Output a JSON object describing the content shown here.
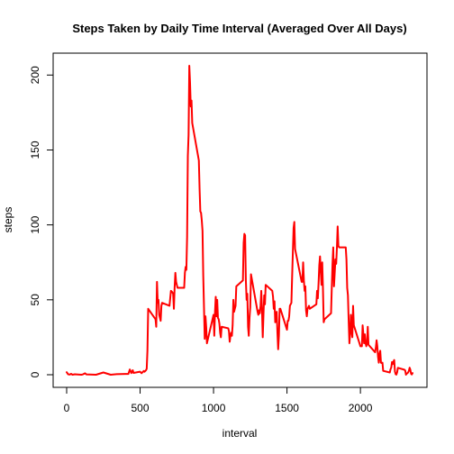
{
  "chart_data": {
    "type": "line",
    "title": "Steps Taken by Daily Time Interval (Averaged Over All Days)",
    "xlabel": "interval",
    "ylabel": "steps",
    "xlim": [
      0,
      2355
    ],
    "ylim": [
      0,
      206.2
    ],
    "x_ticks": [
      0,
      500,
      1000,
      1500,
      2000
    ],
    "y_ticks": [
      0,
      50,
      100,
      150,
      200
    ],
    "x_tick_labels": [
      "0",
      "500",
      "1000",
      "1500",
      "2000"
    ],
    "y_tick_labels": [
      "0",
      "50",
      "100",
      "150",
      "200"
    ],
    "grid": false,
    "legend": "none",
    "series": [
      {
        "color": "#ff0000",
        "points": [
          [
            0,
            1.7
          ],
          [
            10,
            0.3
          ],
          [
            20,
            0.1
          ],
          [
            30,
            0.6
          ],
          [
            40,
            0.0
          ],
          [
            55,
            0.3
          ],
          [
            100,
            0.0
          ],
          [
            110,
            0.2
          ],
          [
            125,
            1.0
          ],
          [
            135,
            0.2
          ],
          [
            200,
            0.0
          ],
          [
            250,
            1.5
          ],
          [
            300,
            0.0
          ],
          [
            340,
            0.4
          ],
          [
            400,
            0.5
          ],
          [
            420,
            0.5
          ],
          [
            430,
            3.5
          ],
          [
            440,
            1.1
          ],
          [
            450,
            3.0
          ],
          [
            455,
            1.2
          ],
          [
            500,
            2.0
          ],
          [
            510,
            1.0
          ],
          [
            525,
            2.5
          ],
          [
            530,
            2.0
          ],
          [
            540,
            3.0
          ],
          [
            545,
            4.0
          ],
          [
            550,
            16.0
          ],
          [
            555,
            44.0
          ],
          [
            605,
            37.0
          ],
          [
            610,
            32.0
          ],
          [
            615,
            62.0
          ],
          [
            620,
            48.0
          ],
          [
            625,
            50.0
          ],
          [
            630,
            40.0
          ],
          [
            640,
            36.0
          ],
          [
            645,
            46.0
          ],
          [
            650,
            48.0
          ],
          [
            700,
            46.0
          ],
          [
            705,
            51.0
          ],
          [
            710,
            56.0
          ],
          [
            720,
            55.0
          ],
          [
            725,
            54.0
          ],
          [
            730,
            44.0
          ],
          [
            735,
            58.0
          ],
          [
            740,
            68.0
          ],
          [
            745,
            62.0
          ],
          [
            750,
            60.0
          ],
          [
            755,
            58.0
          ],
          [
            800,
            58.0
          ],
          [
            805,
            68.0
          ],
          [
            810,
            72.0
          ],
          [
            815,
            70.0
          ],
          [
            820,
            92.0
          ],
          [
            825,
            146.0
          ],
          [
            830,
            160.0
          ],
          [
            835,
            206.2
          ],
          [
            840,
            195.0
          ],
          [
            845,
            179.0
          ],
          [
            850,
            183.0
          ],
          [
            855,
            168.0
          ],
          [
            900,
            143.0
          ],
          [
            905,
            124.0
          ],
          [
            910,
            109.0
          ],
          [
            915,
            108.0
          ],
          [
            920,
            103.0
          ],
          [
            925,
            96.0
          ],
          [
            930,
            66.0
          ],
          [
            935,
            45.0
          ],
          [
            940,
            24.0
          ],
          [
            945,
            39.0
          ],
          [
            950,
            32.0
          ],
          [
            955,
            21.0
          ],
          [
            1000,
            40.0
          ],
          [
            1005,
            26.0
          ],
          [
            1010,
            42.0
          ],
          [
            1015,
            52.0
          ],
          [
            1020,
            39.0
          ],
          [
            1025,
            50.0
          ],
          [
            1030,
            38.0
          ],
          [
            1035,
            37.0
          ],
          [
            1040,
            34.0
          ],
          [
            1045,
            28.0
          ],
          [
            1050,
            25.0
          ],
          [
            1055,
            32.0
          ],
          [
            1100,
            31.0
          ],
          [
            1105,
            29.0
          ],
          [
            1110,
            22.0
          ],
          [
            1115,
            26.0
          ],
          [
            1120,
            28.0
          ],
          [
            1125,
            26.0
          ],
          [
            1130,
            33.0
          ],
          [
            1135,
            50.0
          ],
          [
            1140,
            42.0
          ],
          [
            1145,
            44.0
          ],
          [
            1150,
            46.0
          ],
          [
            1155,
            59.0
          ],
          [
            1200,
            63.0
          ],
          [
            1205,
            88.0
          ],
          [
            1210,
            94.0
          ],
          [
            1215,
            93.0
          ],
          [
            1220,
            63.0
          ],
          [
            1225,
            50.0
          ],
          [
            1230,
            54.0
          ],
          [
            1235,
            32.0
          ],
          [
            1240,
            26.0
          ],
          [
            1245,
            38.0
          ],
          [
            1250,
            45.0
          ],
          [
            1255,
            67.0
          ],
          [
            1300,
            42.0
          ],
          [
            1305,
            40.0
          ],
          [
            1310,
            43.0
          ],
          [
            1315,
            41.0
          ],
          [
            1320,
            46.0
          ],
          [
            1325,
            56.0
          ],
          [
            1330,
            43.0
          ],
          [
            1335,
            25.0
          ],
          [
            1340,
            40.0
          ],
          [
            1345,
            53.0
          ],
          [
            1350,
            47.0
          ],
          [
            1355,
            60.0
          ],
          [
            1400,
            56.0
          ],
          [
            1405,
            52.0
          ],
          [
            1410,
            44.0
          ],
          [
            1415,
            49.0
          ],
          [
            1420,
            35.0
          ],
          [
            1425,
            38.0
          ],
          [
            1430,
            42.0
          ],
          [
            1435,
            28.0
          ],
          [
            1440,
            17.0
          ],
          [
            1445,
            26.0
          ],
          [
            1450,
            44.0
          ],
          [
            1455,
            44.0
          ],
          [
            1500,
            30.0
          ],
          [
            1505,
            36.0
          ],
          [
            1510,
            36.0
          ],
          [
            1515,
            39.0
          ],
          [
            1520,
            46.0
          ],
          [
            1525,
            47.0
          ],
          [
            1530,
            48.0
          ],
          [
            1535,
            65.0
          ],
          [
            1540,
            82.0
          ],
          [
            1545,
            98.0
          ],
          [
            1550,
            102.0
          ],
          [
            1555,
            84.0
          ],
          [
            1600,
            62.0
          ],
          [
            1605,
            62.0
          ],
          [
            1610,
            75.0
          ],
          [
            1615,
            63.0
          ],
          [
            1620,
            56.0
          ],
          [
            1625,
            59.0
          ],
          [
            1630,
            43.0
          ],
          [
            1635,
            39.0
          ],
          [
            1640,
            44.0
          ],
          [
            1645,
            45.0
          ],
          [
            1650,
            46.0
          ],
          [
            1655,
            44.0
          ],
          [
            1700,
            47.0
          ],
          [
            1705,
            56.0
          ],
          [
            1710,
            51.0
          ],
          [
            1715,
            61.0
          ],
          [
            1720,
            73.0
          ],
          [
            1725,
            79.0
          ],
          [
            1730,
            69.0
          ],
          [
            1735,
            60.0
          ],
          [
            1740,
            75.0
          ],
          [
            1745,
            57.0
          ],
          [
            1750,
            35.0
          ],
          [
            1755,
            37.0
          ],
          [
            1800,
            41.0
          ],
          [
            1805,
            58.0
          ],
          [
            1810,
            74.0
          ],
          [
            1815,
            85.0
          ],
          [
            1820,
            59.0
          ],
          [
            1825,
            68.0
          ],
          [
            1830,
            77.0
          ],
          [
            1835,
            74.0
          ],
          [
            1840,
            85.0
          ],
          [
            1845,
            99.0
          ],
          [
            1850,
            86.0
          ],
          [
            1855,
            85.0
          ],
          [
            1900,
            85.0
          ],
          [
            1905,
            77.0
          ],
          [
            1910,
            58.0
          ],
          [
            1915,
            53.0
          ],
          [
            1920,
            36.0
          ],
          [
            1925,
            21.0
          ],
          [
            1930,
            27.0
          ],
          [
            1935,
            40.0
          ],
          [
            1940,
            30.0
          ],
          [
            1945,
            25.0
          ],
          [
            1950,
            46.0
          ],
          [
            1955,
            33.0
          ],
          [
            2000,
            19.0
          ],
          [
            2005,
            19.0
          ],
          [
            2010,
            19.0
          ],
          [
            2015,
            33.0
          ],
          [
            2020,
            27.0
          ],
          [
            2025,
            21.0
          ],
          [
            2030,
            27.0
          ],
          [
            2035,
            21.0
          ],
          [
            2040,
            19.0
          ],
          [
            2045,
            21.0
          ],
          [
            2050,
            32.0
          ],
          [
            2055,
            20.0
          ],
          [
            2100,
            15.0
          ],
          [
            2105,
            18.0
          ],
          [
            2110,
            23.0
          ],
          [
            2115,
            19.0
          ],
          [
            2120,
            12.0
          ],
          [
            2125,
            8.0
          ],
          [
            2130,
            14.0
          ],
          [
            2135,
            16.0
          ],
          [
            2140,
            8.0
          ],
          [
            2145,
            7.8
          ],
          [
            2150,
            8.0
          ],
          [
            2155,
            2.6
          ],
          [
            2200,
            1.5
          ],
          [
            2205,
            3.7
          ],
          [
            2210,
            4.8
          ],
          [
            2215,
            8.5
          ],
          [
            2220,
            7.1
          ],
          [
            2225,
            8.7
          ],
          [
            2230,
            9.8
          ],
          [
            2235,
            2.2
          ],
          [
            2240,
            0.3
          ],
          [
            2245,
            0.1
          ],
          [
            2250,
            1.6
          ],
          [
            2255,
            4.6
          ],
          [
            2300,
            3.3
          ],
          [
            2305,
            2.8
          ],
          [
            2310,
            0.0
          ],
          [
            2315,
            0.8
          ],
          [
            2320,
            1.0
          ],
          [
            2325,
            1.6
          ],
          [
            2330,
            2.6
          ],
          [
            2335,
            4.7
          ],
          [
            2340,
            3.3
          ],
          [
            2345,
            0.6
          ],
          [
            2350,
            0.2
          ],
          [
            2355,
            1.1
          ]
        ]
      }
    ]
  }
}
